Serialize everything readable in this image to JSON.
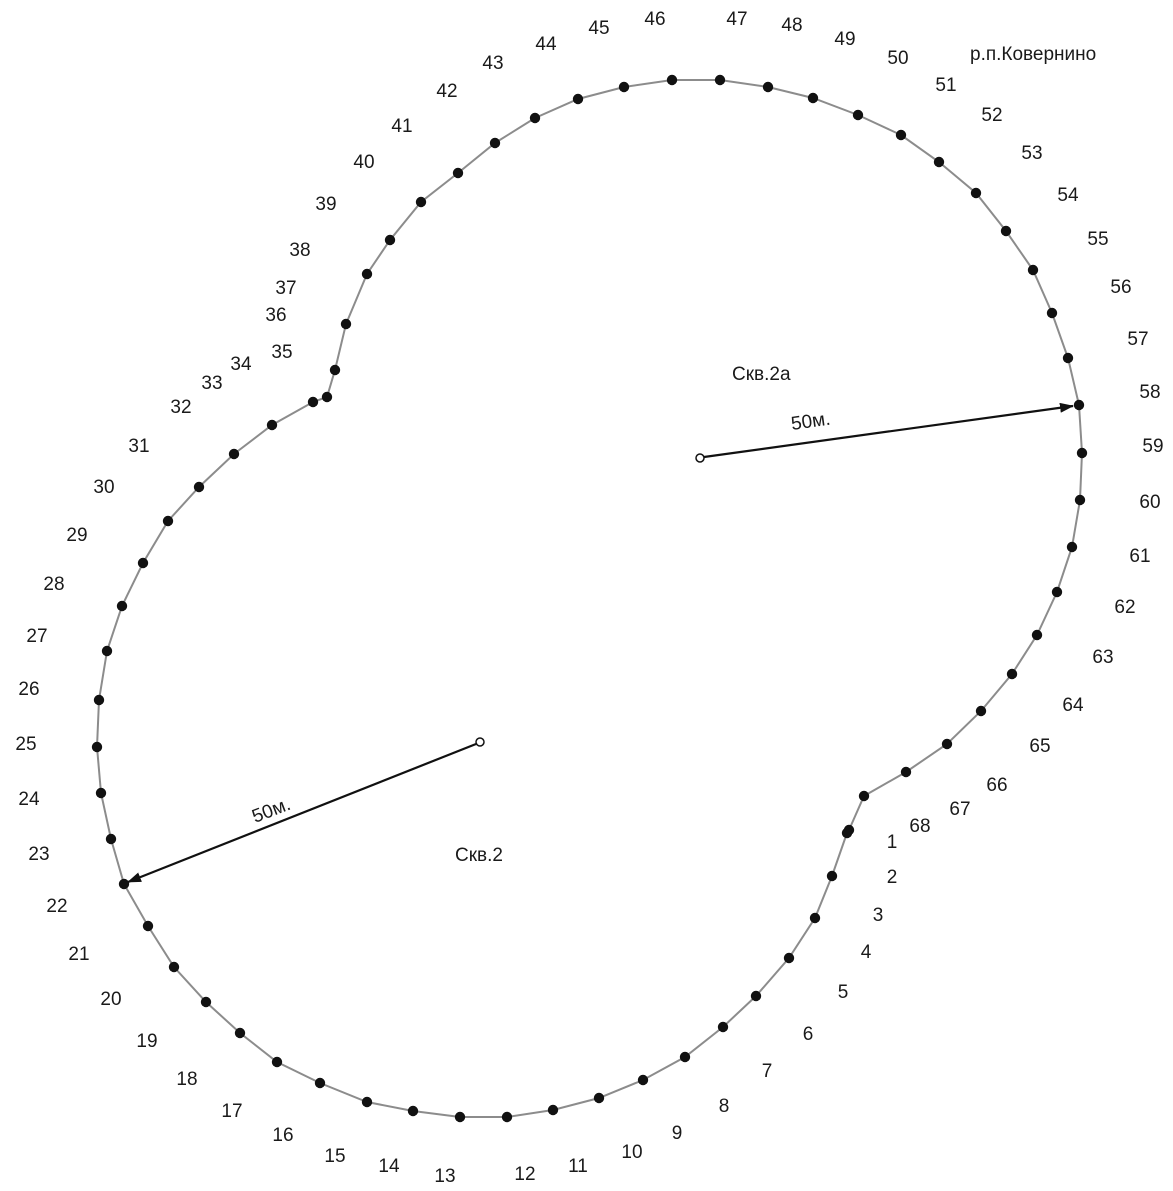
{
  "title": "р.п.Ковернино",
  "wells": [
    {
      "name": "Скв.2а",
      "radius_label": "50м."
    },
    {
      "name": "Скв.2",
      "radius_label": "50м."
    }
  ],
  "boundary_points": [
    "1",
    "2",
    "3",
    "4",
    "5",
    "6",
    "7",
    "8",
    "9",
    "10",
    "11",
    "12",
    "13",
    "14",
    "15",
    "16",
    "17",
    "18",
    "19",
    "20",
    "21",
    "22",
    "23",
    "24",
    "25",
    "26",
    "27",
    "28",
    "29",
    "30",
    "31",
    "32",
    "33",
    "34",
    "35",
    "36",
    "37",
    "38",
    "39",
    "40",
    "41",
    "42",
    "43",
    "44",
    "45",
    "46",
    "47",
    "48",
    "49",
    "50",
    "51",
    "52",
    "53",
    "54",
    "55",
    "56",
    "57",
    "58",
    "59",
    "60",
    "61",
    "62",
    "63",
    "64",
    "65",
    "66",
    "67",
    "68"
  ],
  "colors": {
    "line": "#8c8c8c",
    "point": "#111111",
    "text": "#1a1a1a",
    "arrow": "#111111"
  }
}
